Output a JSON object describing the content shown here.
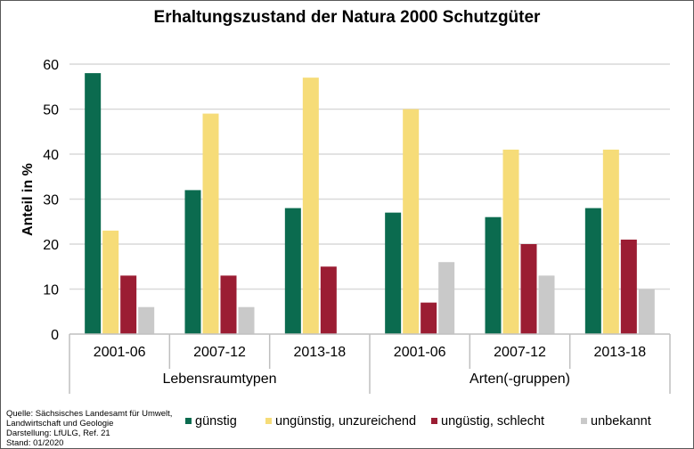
{
  "chart_data": {
    "type": "bar",
    "title": "Erhaltungszustand der Natura 2000 Schutzgüter",
    "ylabel": "Anteil in %",
    "xlabel": "",
    "ylim": [
      0,
      60
    ],
    "yticks": [
      0,
      10,
      20,
      30,
      40,
      50,
      60
    ],
    "grid": true,
    "legend_position": "bottom",
    "groups": [
      {
        "label": "Lebensraumtypen",
        "categories": [
          "2001-06",
          "2007-12",
          "2013-18"
        ]
      },
      {
        "label": "Arten(-gruppen)",
        "categories": [
          "2001-06",
          "2007-12",
          "2013-18"
        ]
      }
    ],
    "series": [
      {
        "name": "günstig",
        "color": "#0b6b4f",
        "values": [
          58,
          32,
          28,
          27,
          26,
          28
        ]
      },
      {
        "name": "ungünstig, unzureichend",
        "color": "#f6dc78",
        "values": [
          23,
          49,
          57,
          50,
          41,
          41
        ]
      },
      {
        "name": "ungüstig, schlecht",
        "color": "#9b1d33",
        "values": [
          13,
          13,
          15,
          7,
          20,
          21
        ]
      },
      {
        "name": "unbekannt",
        "color": "#c9c9c9",
        "values": [
          6,
          6,
          0,
          16,
          13,
          10
        ]
      }
    ]
  },
  "source_note": "Quelle: Sächsisches Landesamt für Umwelt,\nLandwirtschaft und Geologie\nDarstellung: LfULG, Ref. 21\nStand: 01/2020"
}
